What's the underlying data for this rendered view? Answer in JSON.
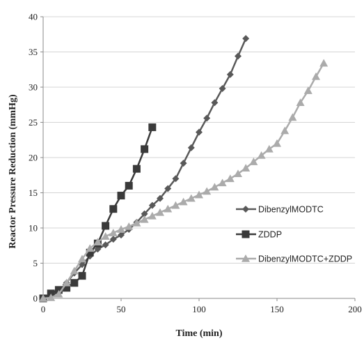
{
  "chart_data": {
    "type": "line",
    "title": "",
    "xlabel": "Time (min)",
    "ylabel": "Reactor Pressure Reduction (mmHg)",
    "xlim": [
      0,
      200
    ],
    "ylim": [
      0,
      40
    ],
    "xticks": [
      0,
      50,
      100,
      150,
      200
    ],
    "yticks": [
      0,
      5,
      10,
      15,
      20,
      25,
      30,
      35,
      40
    ],
    "grid": "horizontal",
    "legend_position": "right",
    "series": [
      {
        "name": "DibenzylMODTC",
        "color": "#595959",
        "marker": "diamond",
        "x": [
          0,
          5,
          10,
          15,
          20,
          25,
          30,
          35,
          40,
          45,
          50,
          55,
          60,
          65,
          70,
          75,
          80,
          85,
          90,
          95,
          100,
          105,
          110,
          115,
          120,
          125,
          130
        ],
        "y": [
          0,
          0.3,
          1,
          2.2,
          3.6,
          4.8,
          6,
          7,
          7.6,
          8.4,
          9,
          9.8,
          10.8,
          12,
          13.2,
          14.2,
          15.6,
          17,
          19.2,
          21.4,
          23.6,
          25.6,
          27.8,
          29.8,
          31.8,
          34.4,
          36.9
        ]
      },
      {
        "name": "ZDDP",
        "color": "#3a3a3a",
        "marker": "square",
        "x": [
          0,
          5,
          10,
          15,
          20,
          25,
          30,
          35,
          40,
          45,
          50,
          55,
          60,
          65,
          70
        ],
        "y": [
          0,
          0.7,
          1.2,
          1.5,
          2.2,
          3.2,
          6.5,
          7.8,
          10.3,
          12.7,
          14.6,
          16,
          18.4,
          21.2,
          24.3
        ]
      },
      {
        "name": "DibenzylMODTC+ZDDP",
        "color": "#ababab",
        "marker": "triangle",
        "x": [
          0,
          5,
          10,
          15,
          20,
          25,
          30,
          35,
          40,
          45,
          50,
          55,
          60,
          65,
          70,
          75,
          80,
          85,
          90,
          95,
          100,
          105,
          110,
          115,
          120,
          125,
          130,
          135,
          140,
          145,
          150,
          155,
          160,
          165,
          170,
          175,
          180
        ],
        "y": [
          0,
          0.1,
          0.6,
          2.2,
          3.9,
          5.6,
          7.1,
          8,
          8.8,
          9.3,
          9.8,
          10.2,
          10.7,
          11.2,
          11.7,
          12.2,
          12.7,
          13.2,
          13.7,
          14.2,
          14.7,
          15.2,
          15.8,
          16.4,
          17,
          17.7,
          18.5,
          19.4,
          20.3,
          21.2,
          22,
          23.8,
          25.7,
          27.8,
          29.5,
          31.5,
          33.4
        ]
      }
    ]
  }
}
